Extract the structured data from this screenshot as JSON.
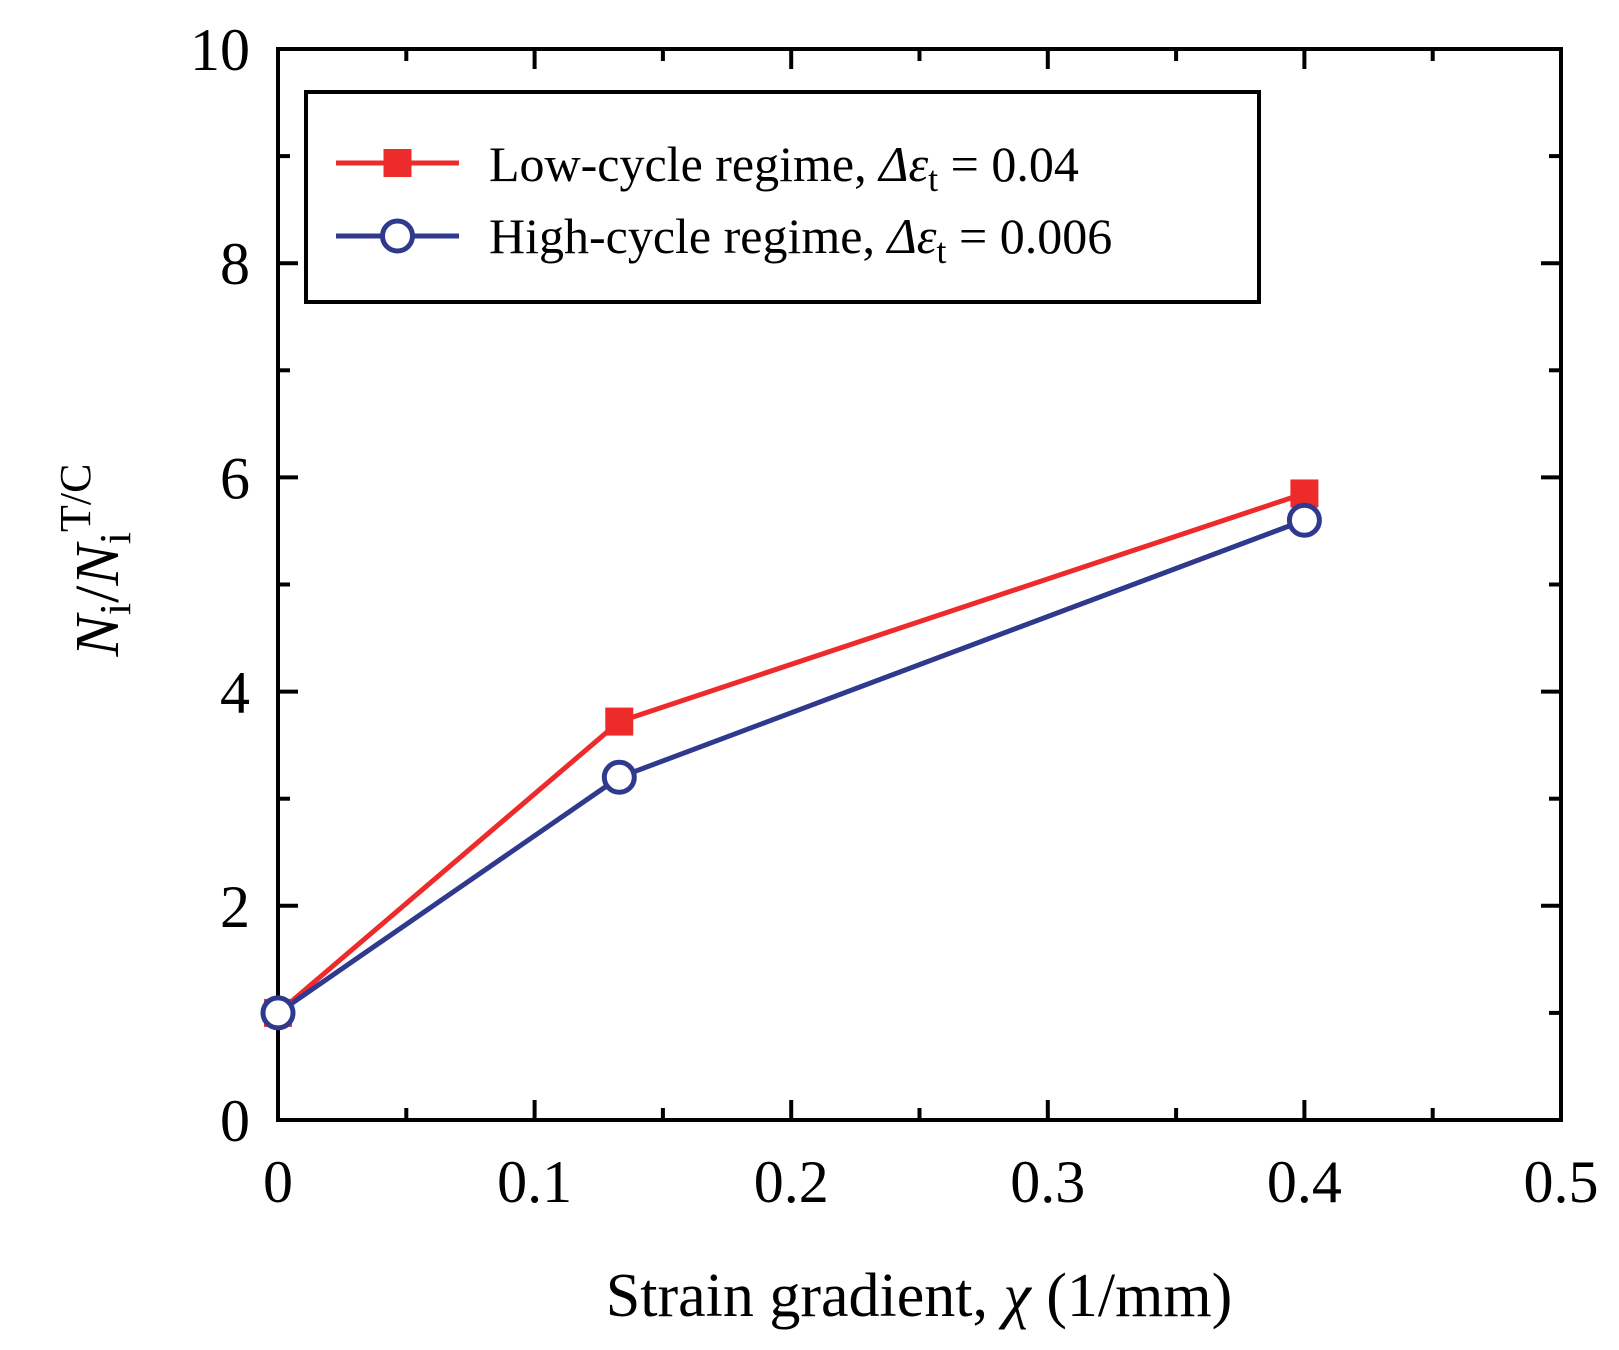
{
  "chart_data": {
    "type": "line",
    "xlabel_text": "Strain gradient, ",
    "xlabel_symbol": "χ",
    "xlabel_unit": " (1/mm)",
    "ylabel_num": "N",
    "ylabel_num_sub": "i",
    "ylabel_slash": "/",
    "ylabel_den": "N",
    "ylabel_den_sub": "i",
    "ylabel_den_sup": "T/C",
    "xlim": [
      0,
      0.5
    ],
    "ylim": [
      0,
      10
    ],
    "xticks": [
      "0",
      "0.1",
      "0.2",
      "0.3",
      "0.4",
      "0.5"
    ],
    "yticks": [
      "0",
      "2",
      "4",
      "6",
      "8",
      "10"
    ],
    "x_tick_values": [
      0,
      0.1,
      0.2,
      0.3,
      0.4,
      0.5
    ],
    "y_tick_values": [
      0,
      2,
      4,
      6,
      8,
      10
    ],
    "legend_position": "top-left",
    "series": [
      {
        "name_prefix": "Low-cycle regime, ",
        "name_delta": "Δε",
        "name_sub": "t",
        "name_suffix": " = 0.04",
        "marker": "filled-square",
        "color": "#ee2b2b",
        "x": [
          0,
          0.133,
          0.4
        ],
        "y": [
          1.0,
          3.72,
          5.85
        ]
      },
      {
        "name_prefix": "High-cycle regime, ",
        "name_delta": "Δε",
        "name_sub": "t",
        "name_suffix": " = 0.006",
        "marker": "open-circle",
        "color": "#2f3a8f",
        "x": [
          0,
          0.133,
          0.4
        ],
        "y": [
          1.0,
          3.2,
          5.6
        ]
      }
    ]
  }
}
